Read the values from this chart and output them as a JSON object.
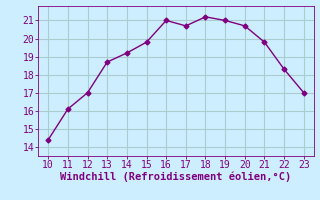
{
  "x": [
    10,
    11,
    12,
    13,
    14,
    15,
    16,
    17,
    18,
    19,
    20,
    21,
    22,
    23
  ],
  "y": [
    14.4,
    16.1,
    17.0,
    18.7,
    19.2,
    19.8,
    21.0,
    20.7,
    21.2,
    21.0,
    20.7,
    19.8,
    18.3,
    17.0
  ],
  "line_color": "#800080",
  "marker": "D",
  "marker_size": 2.5,
  "background_color": "#cceeff",
  "grid_color": "#aacccc",
  "xlabel": "Windchill (Refroidissement éolien,°C)",
  "xlabel_color": "#800080",
  "xlabel_fontsize": 7.5,
  "tick_color": "#800080",
  "tick_fontsize": 7,
  "xlim": [
    9.5,
    23.5
  ],
  "ylim": [
    13.5,
    21.8
  ],
  "xticks": [
    10,
    11,
    12,
    13,
    14,
    15,
    16,
    17,
    18,
    19,
    20,
    21,
    22,
    23
  ],
  "yticks": [
    14,
    15,
    16,
    17,
    18,
    19,
    20,
    21
  ]
}
